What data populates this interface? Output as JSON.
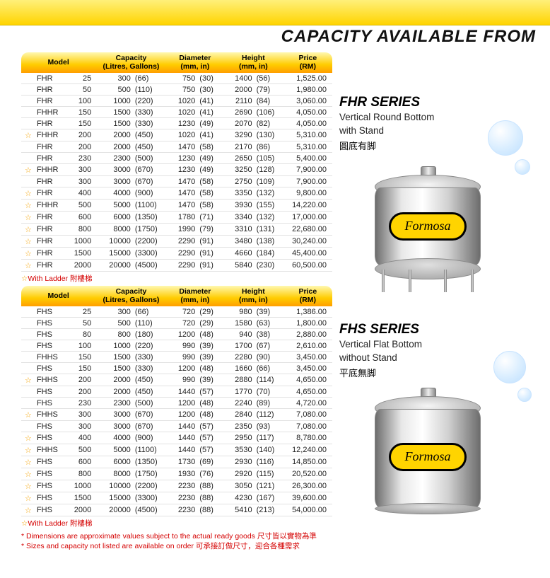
{
  "title": "CAPACITY AVAILABLE FROM",
  "headers": {
    "model": "Model",
    "capacity": "Capacity\n(Litres, Gallons)",
    "diameter": "Diameter\n(mm, in)",
    "height": "Height\n(mm, in)",
    "price": "Price\n(RM)"
  },
  "ladder_note": "With Ladder 附樓梯",
  "footnotes": [
    "* Dimensions are approximate values subject to the actual ready goods 尺寸皆以實物為準",
    "* Sizes and capacity not listed are available on order 可承接訂做尺寸，迎合各種需求"
  ],
  "fhr": {
    "series_title": "FHR SERIES",
    "desc1": "Vertical Round Bottom",
    "desc2": "with Stand",
    "cn": "圓底有脚",
    "brand": "Formosa",
    "rows": [
      {
        "star": false,
        "p": "FHR",
        "n": "25",
        "l": "300",
        "g": "(66)",
        "dmm": "750",
        "din": "(30)",
        "hmm": "1400",
        "hin": "(56)",
        "pr": "1,525.00"
      },
      {
        "star": false,
        "p": "FHR",
        "n": "50",
        "l": "500",
        "g": "(110)",
        "dmm": "750",
        "din": "(30)",
        "hmm": "2000",
        "hin": "(79)",
        "pr": "1,980.00"
      },
      {
        "star": false,
        "p": "FHR",
        "n": "100",
        "l": "1000",
        "g": "(220)",
        "dmm": "1020",
        "din": "(41)",
        "hmm": "2110",
        "hin": "(84)",
        "pr": "3,060.00"
      },
      {
        "star": false,
        "p": "FHHR",
        "n": "150",
        "l": "1500",
        "g": "(330)",
        "dmm": "1020",
        "din": "(41)",
        "hmm": "2690",
        "hin": "(106)",
        "pr": "4,050.00"
      },
      {
        "star": false,
        "p": "FHR",
        "n": "150",
        "l": "1500",
        "g": "(330)",
        "dmm": "1230",
        "din": "(49)",
        "hmm": "2070",
        "hin": "(82)",
        "pr": "4,050.00"
      },
      {
        "star": true,
        "p": "FHHR",
        "n": "200",
        "l": "2000",
        "g": "(450)",
        "dmm": "1020",
        "din": "(41)",
        "hmm": "3290",
        "hin": "(130)",
        "pr": "5,310.00"
      },
      {
        "star": false,
        "p": "FHR",
        "n": "200",
        "l": "2000",
        "g": "(450)",
        "dmm": "1470",
        "din": "(58)",
        "hmm": "2170",
        "hin": "(86)",
        "pr": "5,310.00"
      },
      {
        "star": false,
        "p": "FHR",
        "n": "230",
        "l": "2300",
        "g": "(500)",
        "dmm": "1230",
        "din": "(49)",
        "hmm": "2650",
        "hin": "(105)",
        "pr": "5,400.00"
      },
      {
        "star": true,
        "p": "FHHR",
        "n": "300",
        "l": "3000",
        "g": "(670)",
        "dmm": "1230",
        "din": "(49)",
        "hmm": "3250",
        "hin": "(128)",
        "pr": "7,900.00"
      },
      {
        "star": false,
        "p": "FHR",
        "n": "300",
        "l": "3000",
        "g": "(670)",
        "dmm": "1470",
        "din": "(58)",
        "hmm": "2750",
        "hin": "(109)",
        "pr": "7,900.00"
      },
      {
        "star": true,
        "p": "FHR",
        "n": "400",
        "l": "4000",
        "g": "(900)",
        "dmm": "1470",
        "din": "(58)",
        "hmm": "3350",
        "hin": "(132)",
        "pr": "9,800.00"
      },
      {
        "star": true,
        "p": "FHHR",
        "n": "500",
        "l": "5000",
        "g": "(1100)",
        "dmm": "1470",
        "din": "(58)",
        "hmm": "3930",
        "hin": "(155)",
        "pr": "14,220.00"
      },
      {
        "star": true,
        "p": "FHR",
        "n": "600",
        "l": "6000",
        "g": "(1350)",
        "dmm": "1780",
        "din": "(71)",
        "hmm": "3340",
        "hin": "(132)",
        "pr": "17,000.00"
      },
      {
        "star": true,
        "p": "FHR",
        "n": "800",
        "l": "8000",
        "g": "(1750)",
        "dmm": "1990",
        "din": "(79)",
        "hmm": "3310",
        "hin": "(131)",
        "pr": "22,680.00"
      },
      {
        "star": true,
        "p": "FHR",
        "n": "1000",
        "l": "10000",
        "g": "(2200)",
        "dmm": "2290",
        "din": "(91)",
        "hmm": "3480",
        "hin": "(138)",
        "pr": "30,240.00"
      },
      {
        "star": true,
        "p": "FHR",
        "n": "1500",
        "l": "15000",
        "g": "(3300)",
        "dmm": "2290",
        "din": "(91)",
        "hmm": "4660",
        "hin": "(184)",
        "pr": "45,400.00"
      },
      {
        "star": true,
        "p": "FHR",
        "n": "2000",
        "l": "20000",
        "g": "(4500)",
        "dmm": "2290",
        "din": "(91)",
        "hmm": "5840",
        "hin": "(230)",
        "pr": "60,500.00"
      }
    ]
  },
  "fhs": {
    "series_title": "FHS SERIES",
    "desc1": "Vertical Flat Bottom",
    "desc2": "without Stand",
    "cn": "平底無脚",
    "brand": "Formosa",
    "rows": [
      {
        "star": false,
        "p": "FHS",
        "n": "25",
        "l": "300",
        "g": "(66)",
        "dmm": "720",
        "din": "(29)",
        "hmm": "980",
        "hin": "(39)",
        "pr": "1,386.00"
      },
      {
        "star": false,
        "p": "FHS",
        "n": "50",
        "l": "500",
        "g": "(110)",
        "dmm": "720",
        "din": "(29)",
        "hmm": "1580",
        "hin": "(63)",
        "pr": "1,800.00"
      },
      {
        "star": false,
        "p": "FHS",
        "n": "80",
        "l": "800",
        "g": "(180)",
        "dmm": "1200",
        "din": "(48)",
        "hmm": "940",
        "hin": "(38)",
        "pr": "2,880.00"
      },
      {
        "star": false,
        "p": "FHS",
        "n": "100",
        "l": "1000",
        "g": "(220)",
        "dmm": "990",
        "din": "(39)",
        "hmm": "1700",
        "hin": "(67)",
        "pr": "2,610.00"
      },
      {
        "star": false,
        "p": "FHHS",
        "n": "150",
        "l": "1500",
        "g": "(330)",
        "dmm": "990",
        "din": "(39)",
        "hmm": "2280",
        "hin": "(90)",
        "pr": "3,450.00"
      },
      {
        "star": false,
        "p": "FHS",
        "n": "150",
        "l": "1500",
        "g": "(330)",
        "dmm": "1200",
        "din": "(48)",
        "hmm": "1660",
        "hin": "(66)",
        "pr": "3,450.00"
      },
      {
        "star": true,
        "p": "FHHS",
        "n": "200",
        "l": "2000",
        "g": "(450)",
        "dmm": "990",
        "din": "(39)",
        "hmm": "2880",
        "hin": "(114)",
        "pr": "4,650.00"
      },
      {
        "star": false,
        "p": "FHS",
        "n": "200",
        "l": "2000",
        "g": "(450)",
        "dmm": "1440",
        "din": "(57)",
        "hmm": "1770",
        "hin": "(70)",
        "pr": "4,650.00"
      },
      {
        "star": false,
        "p": "FHS",
        "n": "230",
        "l": "2300",
        "g": "(500)",
        "dmm": "1200",
        "din": "(48)",
        "hmm": "2240",
        "hin": "(89)",
        "pr": "4,720.00"
      },
      {
        "star": true,
        "p": "FHHS",
        "n": "300",
        "l": "3000",
        "g": "(670)",
        "dmm": "1200",
        "din": "(48)",
        "hmm": "2840",
        "hin": "(112)",
        "pr": "7,080.00"
      },
      {
        "star": false,
        "p": "FHS",
        "n": "300",
        "l": "3000",
        "g": "(670)",
        "dmm": "1440",
        "din": "(57)",
        "hmm": "2350",
        "hin": "(93)",
        "pr": "7,080.00"
      },
      {
        "star": true,
        "p": "FHS",
        "n": "400",
        "l": "4000",
        "g": "(900)",
        "dmm": "1440",
        "din": "(57)",
        "hmm": "2950",
        "hin": "(117)",
        "pr": "8,780.00"
      },
      {
        "star": true,
        "p": "FHHS",
        "n": "500",
        "l": "5000",
        "g": "(1100)",
        "dmm": "1440",
        "din": "(57)",
        "hmm": "3530",
        "hin": "(140)",
        "pr": "12,240.00"
      },
      {
        "star": true,
        "p": "FHS",
        "n": "600",
        "l": "6000",
        "g": "(1350)",
        "dmm": "1730",
        "din": "(69)",
        "hmm": "2930",
        "hin": "(116)",
        "pr": "14,850.00"
      },
      {
        "star": true,
        "p": "FHS",
        "n": "800",
        "l": "8000",
        "g": "(1750)",
        "dmm": "1930",
        "din": "(76)",
        "hmm": "2920",
        "hin": "(115)",
        "pr": "20,520.00"
      },
      {
        "star": true,
        "p": "FHS",
        "n": "1000",
        "l": "10000",
        "g": "(2200)",
        "dmm": "2230",
        "din": "(88)",
        "hmm": "3050",
        "hin": "(121)",
        "pr": "26,300.00"
      },
      {
        "star": true,
        "p": "FHS",
        "n": "1500",
        "l": "15000",
        "g": "(3300)",
        "dmm": "2230",
        "din": "(88)",
        "hmm": "4230",
        "hin": "(167)",
        "pr": "39,600.00"
      },
      {
        "star": true,
        "p": "FHS",
        "n": "2000",
        "l": "20000",
        "g": "(4500)",
        "dmm": "2230",
        "din": "(88)",
        "hmm": "5410",
        "hin": "(213)",
        "pr": "54,000.00"
      }
    ]
  },
  "colors": {
    "header_grad_top": "#fff8b0",
    "header_grad_bot": "#ff9e00",
    "star": "#f5a300",
    "red_text": "#d40000",
    "brand_plate": "#ffd400"
  }
}
